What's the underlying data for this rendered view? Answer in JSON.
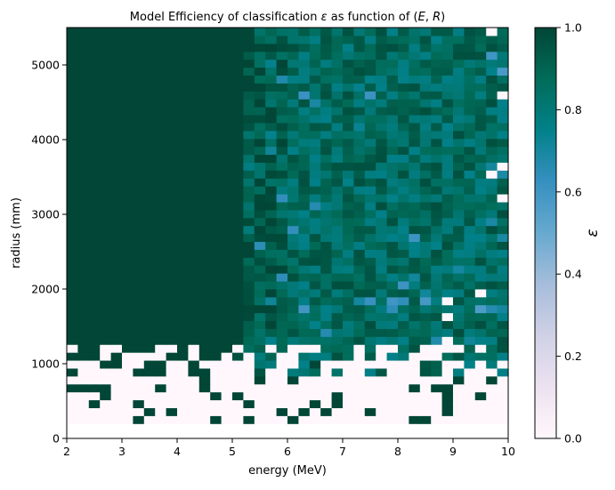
{
  "chart_data": {
    "type": "heatmap",
    "title": "Model Efficiency of classification ε as function of (E, R)",
    "title_parts": {
      "prefix": "Model Efficiency of classification ",
      "epsilon": "ε",
      "middle": " as function of ",
      "E": "E",
      "comma": ", ",
      "R": "R",
      "open": "(",
      "close": ")"
    },
    "xlabel": "energy (MeV)",
    "ylabel": "radius (mm)",
    "colorbar_label": "ε",
    "xlim": [
      2,
      10
    ],
    "ylim": [
      0,
      5500
    ],
    "x_ticks": [
      2,
      3,
      4,
      5,
      6,
      7,
      8,
      9,
      10
    ],
    "y_ticks": [
      0,
      1000,
      2000,
      3000,
      4000,
      5000
    ],
    "colorbar_ticks": [
      "0.0",
      "0.2",
      "0.4",
      "0.6",
      "0.8",
      "1.0"
    ],
    "colorbar_range": [
      0,
      1
    ],
    "colormap": "PuBuGn",
    "bins": {
      "x_count": 40,
      "y_count": 50,
      "y_start": 200,
      "y_end": 5500
    },
    "description": "Efficiency is ~1.0 for E < ~5 MeV above R ~ 1200 mm; decreases to ~0.8-0.9 (teal) with scatter at higher energies; near 0 (white) at low radius (R < ~800 mm)."
  },
  "colors": {
    "high": "#014636",
    "mid": "#02818a",
    "low_mid": "#3690c0",
    "low": "#fff7fb"
  }
}
